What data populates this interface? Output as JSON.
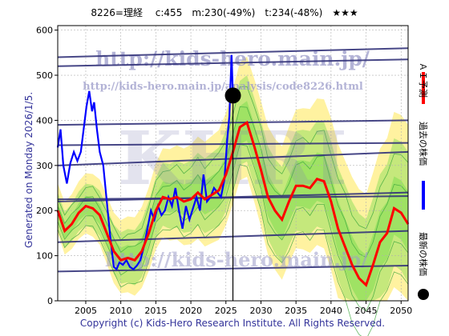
{
  "header": {
    "text": "8226=理経　 c:455　m:230(-49%)　t:234(-48%)　★★★"
  },
  "watermark": {
    "url_large": "http://kids-hero.main.jp/",
    "url_small": "http://kids-hero.main.jp/analysis/code8226.html",
    "mark": "KHRI",
    "url_bottom": "http://kids-hero.main.jp/"
  },
  "generated": "Generated on Monday 2026/1/5.",
  "copyright": "Copyright (c) Kids-Hero Research Institute. All Rights Reserved.",
  "legend": {
    "ai_forecast": "ＡＩ予測",
    "past_price": "過去の株価",
    "latest_price": "最新の株価"
  },
  "colors": {
    "ai_forecast": "#ff0000",
    "past_price": "#0000ff",
    "latest_price": "#000000",
    "band_fill": "#7fdc50",
    "band_outer": "#fff2a0",
    "trend_line": "#33337a",
    "grid": "#b0b0b0"
  },
  "chart_data": {
    "type": "line",
    "xlim": [
      2001,
      2051
    ],
    "ylim": [
      0,
      610
    ],
    "xticks": [
      2005,
      2010,
      2015,
      2020,
      2025,
      2030,
      2035,
      2040,
      2045,
      2050
    ],
    "yticks": [
      0,
      100,
      200,
      300,
      400,
      500,
      600
    ],
    "grid": true,
    "current": {
      "x": 2026.0,
      "y": 455
    },
    "series": [
      {
        "key": "past",
        "points": [
          [
            2001.0,
            340
          ],
          [
            2001.4,
            380
          ],
          [
            2001.8,
            300
          ],
          [
            2002.3,
            260
          ],
          [
            2002.8,
            305
          ],
          [
            2003.3,
            330
          ],
          [
            2003.8,
            310
          ],
          [
            2004.3,
            330
          ],
          [
            2004.7,
            380
          ],
          [
            2005.1,
            430
          ],
          [
            2005.5,
            465
          ],
          [
            2005.9,
            420
          ],
          [
            2006.2,
            440
          ],
          [
            2006.6,
            380
          ],
          [
            2007.0,
            330
          ],
          [
            2007.5,
            300
          ],
          [
            2008.0,
            220
          ],
          [
            2008.5,
            140
          ],
          [
            2009.0,
            75
          ],
          [
            2009.4,
            70
          ],
          [
            2009.8,
            85
          ],
          [
            2010.3,
            80
          ],
          [
            2010.8,
            90
          ],
          [
            2011.3,
            75
          ],
          [
            2011.8,
            70
          ],
          [
            2012.3,
            78
          ],
          [
            2012.8,
            90
          ],
          [
            2013.3,
            120
          ],
          [
            2013.8,
            160
          ],
          [
            2014.3,
            200
          ],
          [
            2014.8,
            180
          ],
          [
            2015.3,
            210
          ],
          [
            2015.8,
            190
          ],
          [
            2016.3,
            200
          ],
          [
            2016.8,
            230
          ],
          [
            2017.3,
            210
          ],
          [
            2017.8,
            250
          ],
          [
            2018.3,
            200
          ],
          [
            2018.8,
            160
          ],
          [
            2019.3,
            210
          ],
          [
            2019.8,
            180
          ],
          [
            2020.3,
            205
          ],
          [
            2020.8,
            230
          ],
          [
            2021.3,
            200
          ],
          [
            2021.8,
            280
          ],
          [
            2022.3,
            220
          ],
          [
            2022.8,
            230
          ],
          [
            2023.3,
            250
          ],
          [
            2023.8,
            240
          ],
          [
            2024.3,
            230
          ],
          [
            2024.8,
            270
          ],
          [
            2025.2,
            360
          ],
          [
            2025.5,
            410
          ],
          [
            2025.8,
            545
          ],
          [
            2026.0,
            455
          ]
        ]
      },
      {
        "key": "forecast",
        "points": [
          [
            2001.0,
            200
          ],
          [
            2002.0,
            155
          ],
          [
            2003.0,
            170
          ],
          [
            2004.0,
            195
          ],
          [
            2005.0,
            210
          ],
          [
            2006.0,
            205
          ],
          [
            2007.0,
            190
          ],
          [
            2008.0,
            150
          ],
          [
            2009.0,
            110
          ],
          [
            2010.0,
            90
          ],
          [
            2011.0,
            95
          ],
          [
            2012.0,
            90
          ],
          [
            2013.0,
            110
          ],
          [
            2014.0,
            150
          ],
          [
            2015.0,
            200
          ],
          [
            2016.0,
            230
          ],
          [
            2017.0,
            225
          ],
          [
            2018.0,
            230
          ],
          [
            2019.0,
            220
          ],
          [
            2020.0,
            225
          ],
          [
            2021.0,
            240
          ],
          [
            2022.0,
            225
          ],
          [
            2023.0,
            235
          ],
          [
            2024.0,
            245
          ],
          [
            2025.0,
            280
          ],
          [
            2026.0,
            330
          ],
          [
            2027.0,
            385
          ],
          [
            2028.0,
            395
          ],
          [
            2029.0,
            345
          ],
          [
            2030.0,
            290
          ],
          [
            2031.0,
            230
          ],
          [
            2032.0,
            200
          ],
          [
            2033.0,
            180
          ],
          [
            2034.0,
            220
          ],
          [
            2035.0,
            255
          ],
          [
            2036.0,
            255
          ],
          [
            2037.0,
            250
          ],
          [
            2038.0,
            270
          ],
          [
            2039.0,
            265
          ],
          [
            2040.0,
            220
          ],
          [
            2041.0,
            160
          ],
          [
            2042.0,
            120
          ],
          [
            2043.0,
            80
          ],
          [
            2044.0,
            50
          ],
          [
            2045.0,
            35
          ],
          [
            2046.0,
            80
          ],
          [
            2047.0,
            130
          ],
          [
            2048.0,
            150
          ],
          [
            2049.0,
            205
          ],
          [
            2050.0,
            195
          ],
          [
            2051.0,
            170
          ]
        ]
      }
    ],
    "trend_lines": [
      [
        [
          2001,
          540
        ],
        [
          2051,
          560
        ]
      ],
      [
        [
          2001,
          520
        ],
        [
          2051,
          535
        ]
      ],
      [
        [
          2001,
          390
        ],
        [
          2051,
          400
        ]
      ],
      [
        [
          2001,
          345
        ],
        [
          2051,
          350
        ]
      ],
      [
        [
          2001,
          300
        ],
        [
          2051,
          330
        ]
      ],
      [
        [
          2001,
          220
        ],
        [
          2051,
          240
        ]
      ],
      [
        [
          2001,
          225
        ],
        [
          2051,
          232
        ]
      ],
      [
        [
          2001,
          130
        ],
        [
          2051,
          155
        ]
      ],
      [
        [
          2001,
          65
        ],
        [
          2051,
          78
        ]
      ]
    ]
  }
}
